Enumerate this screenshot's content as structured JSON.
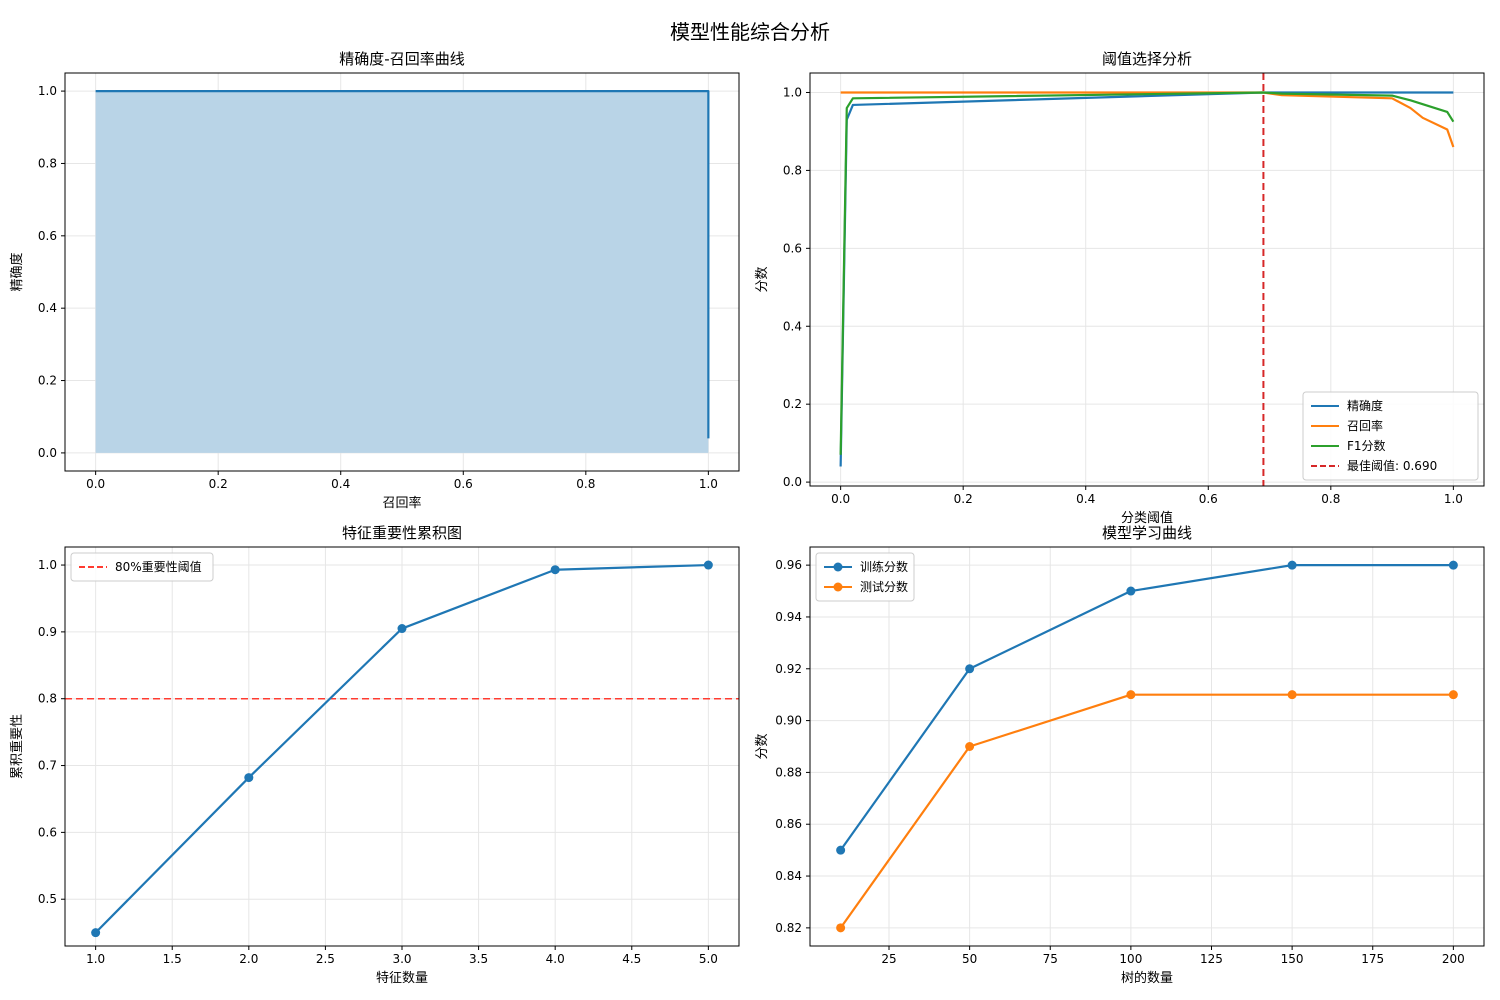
{
  "figure": {
    "suptitle": "模型性能综合分析"
  },
  "colors": {
    "blue": "#1f77b4",
    "orange": "#ff7f0e",
    "green": "#2ca02c",
    "red": "#d62728",
    "fill": "#b9d4e7"
  },
  "chart_data": [
    {
      "type": "area",
      "title": "精确度-召回率曲线",
      "xlabel": "召回率",
      "ylabel": "精确度",
      "xlim": [
        -0.05,
        1.05
      ],
      "ylim": [
        -0.05,
        1.05
      ],
      "xticks": [
        0.0,
        0.2,
        0.4,
        0.6,
        0.8,
        1.0
      ],
      "yticks": [
        0.0,
        0.2,
        0.4,
        0.6,
        0.8,
        1.0
      ],
      "tick_format": 1,
      "grid": true,
      "series": [
        {
          "x": [
            0.0,
            1.0,
            1.0
          ],
          "y": [
            1.0,
            1.0,
            0.04
          ],
          "color": "#1f77b4",
          "fill": true
        }
      ]
    },
    {
      "type": "line",
      "title": "阈值选择分析",
      "xlabel": "分类阈值",
      "ylabel": "分数",
      "xlim": [
        -0.05,
        1.05
      ],
      "ylim": [
        -0.01,
        1.05
      ],
      "xticks": [
        0.0,
        0.2,
        0.4,
        0.6,
        0.8,
        1.0
      ],
      "yticks": [
        0.0,
        0.2,
        0.4,
        0.6,
        0.8,
        1.0
      ],
      "tick_format": 1,
      "grid": true,
      "legend": "lower-right",
      "series": [
        {
          "name": "精确度",
          "color": "#1f77b4",
          "x": [
            0.0,
            0.01,
            0.02,
            0.69,
            1.0
          ],
          "y": [
            0.04,
            0.93,
            0.968,
            1.0,
            1.0
          ]
        },
        {
          "name": "召回率",
          "color": "#ff7f0e",
          "x": [
            0.0,
            0.69,
            0.72,
            0.9,
            0.93,
            0.95,
            0.99,
            1.0
          ],
          "y": [
            1.0,
            1.0,
            0.993,
            0.985,
            0.96,
            0.935,
            0.905,
            0.86
          ]
        },
        {
          "name": "F1分数",
          "color": "#2ca02c",
          "x": [
            0.0,
            0.01,
            0.02,
            0.69,
            0.72,
            0.9,
            0.93,
            0.95,
            0.99,
            1.0
          ],
          "y": [
            0.07,
            0.96,
            0.985,
            1.0,
            0.997,
            0.992,
            0.98,
            0.97,
            0.95,
            0.925
          ]
        }
      ],
      "vline": {
        "name": "最佳阈值: 0.690",
        "x": 0.69,
        "color": "#d62728"
      }
    },
    {
      "type": "line",
      "title": "特征重要性累积图",
      "xlabel": "特征数量",
      "ylabel": "累积重要性",
      "xlim": [
        0.8,
        5.2
      ],
      "ylim": [
        0.43,
        1.027
      ],
      "xticks": [
        1.0,
        1.5,
        2.0,
        2.5,
        3.0,
        3.5,
        4.0,
        4.5,
        5.0
      ],
      "yticks": [
        0.5,
        0.6,
        0.7,
        0.8,
        0.9,
        1.0
      ],
      "tick_format": 1,
      "grid": true,
      "legend": "upper-left",
      "series": [
        {
          "color": "#1f77b4",
          "markers": true,
          "x": [
            1,
            2,
            3,
            4,
            5
          ],
          "y": [
            0.45,
            0.682,
            0.905,
            0.993,
            1.0
          ]
        }
      ],
      "hline": {
        "name": "80%重要性阈值",
        "y": 0.8,
        "color": "#ff3b30"
      }
    },
    {
      "type": "line",
      "title": "模型学习曲线",
      "xlabel": "树的数量",
      "ylabel": "分数",
      "xlim": [
        0.5,
        209.5
      ],
      "ylim": [
        0.813,
        0.967
      ],
      "xticks": [
        25,
        50,
        75,
        100,
        125,
        150,
        175,
        200
      ],
      "yticks": [
        0.82,
        0.84,
        0.86,
        0.88,
        0.9,
        0.92,
        0.94,
        0.96
      ],
      "tick_format": 2,
      "x_tick_format": 0,
      "grid": true,
      "legend": "upper-left",
      "series": [
        {
          "name": "训练分数",
          "color": "#1f77b4",
          "markers": true,
          "x": [
            10,
            50,
            100,
            150,
            200
          ],
          "y": [
            0.85,
            0.92,
            0.95,
            0.96,
            0.96
          ]
        },
        {
          "name": "测试分数",
          "color": "#ff7f0e",
          "markers": true,
          "x": [
            10,
            50,
            100,
            150,
            200
          ],
          "y": [
            0.82,
            0.89,
            0.91,
            0.91,
            0.91
          ]
        }
      ]
    }
  ]
}
